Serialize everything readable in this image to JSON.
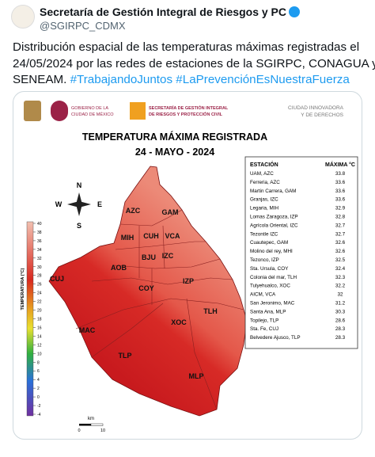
{
  "tweet": {
    "author": "Secretaría de Gestión Integral de Riesgos y PC",
    "handle": "@SGIRPC_CDMX",
    "text_lines": [
      "Distribución espacial de las temperaturas máximas registradas el",
      "24/05/2024 por las redes de estaciones de la SGIRPC, CONAGUA y",
      "SENEAM."
    ],
    "hashtags": [
      "#TrabajandoJuntos",
      "#LaPrevenciónEsNuestraFuerza"
    ]
  },
  "image": {
    "logos": {
      "gov_line1": "GOBIERNO DE LA",
      "gov_line2": "CIUDAD DE MÉXICO",
      "sec_line1": "SECRETARÍA DE GESTIÓN INTEGRAL",
      "sec_line2": "DE RIESGOS Y PROTECCIÓN CIVIL",
      "slogan_line1": "CIUDAD INNOVADORA",
      "slogan_line2": "Y DE DERECHOS"
    },
    "title": "TEMPERATURA MÁXIMA REGISTRADA",
    "date": "24 - MAYO - 2024",
    "table": {
      "headers": [
        "ESTACIÓN",
        "MÁXIMA °C"
      ],
      "rows": [
        [
          "UAM, AZC",
          "33.8"
        ],
        [
          "Ferreria, AZC",
          "33.6"
        ],
        [
          "Martin Carrera, GAM",
          "33.6"
        ],
        [
          "Granjas, IZC",
          "33.6"
        ],
        [
          "Legaria, MIH",
          "32.9"
        ],
        [
          "Lomas Zaragoza, IZP",
          "32.8"
        ],
        [
          "Agrícola Oriental, IZC",
          "32.7"
        ],
        [
          "Tezontle IZC",
          "32.7"
        ],
        [
          "Cuautepec, GAM",
          "32.6"
        ],
        [
          "Molino del rey, MHI",
          "32.6"
        ],
        [
          "Tezonco, IZP",
          "32.5"
        ],
        [
          "Sta. Ursula, COY",
          "32.4"
        ],
        [
          "Colonia del mar, TLH",
          "32.3"
        ],
        [
          "Tulyehualco, XOC",
          "32.2"
        ],
        [
          "AICM, VCA",
          "32"
        ],
        [
          "San Jeronimo, MAC",
          "31.2"
        ],
        [
          "Santa Ana, MLP",
          "30.3"
        ],
        [
          "Topilejo, TLP",
          "28.6"
        ],
        [
          "Sta. Fe, CUJ",
          "28.3"
        ],
        [
          "Belvedere Ajusco, TLP",
          "28.3"
        ]
      ]
    },
    "legend": {
      "label": "TEMPERATURA (°C)",
      "ticks": [
        40,
        38,
        36,
        34,
        32,
        30,
        28,
        26,
        24,
        22,
        20,
        18,
        16,
        14,
        12,
        10,
        8,
        6,
        4,
        2,
        0,
        -2,
        -4
      ]
    },
    "compass": [
      "N",
      "W",
      "E",
      "S"
    ],
    "scale": {
      "unit": "km",
      "start": "0",
      "end": "10"
    },
    "boroughs": [
      "AZC",
      "GAM",
      "MIH",
      "CUH",
      "VCA",
      "BJU",
      "IZC",
      "AOB",
      "IZP",
      "COY",
      "CUJ",
      "TLH",
      "XOC",
      "MAC",
      "TLP",
      "MLP"
    ]
  }
}
